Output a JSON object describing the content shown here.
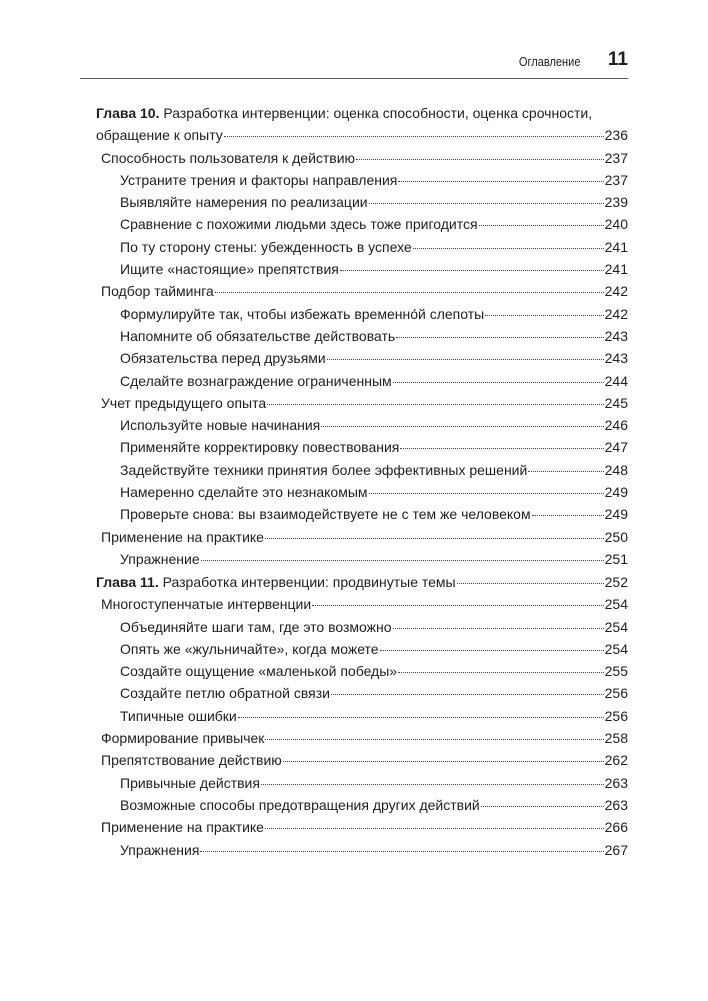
{
  "header": {
    "section": "Оглавление",
    "page_number": "11"
  },
  "chapters": [
    {
      "label": "Глава 10.",
      "title": " Разработка интервенции: оценка способности, оценка срочности,",
      "title_line2": "обращение к опыту",
      "page": "236",
      "entries": [
        {
          "level": 1,
          "text": "Способность пользователя к действию",
          "page": "237"
        },
        {
          "level": 2,
          "text": "Устраните трения и факторы направления",
          "page": "237"
        },
        {
          "level": 2,
          "text": "Выявляйте намерения по реализации",
          "page": "239"
        },
        {
          "level": 2,
          "text": "Сравнение с похожими людьми здесь тоже пригодится",
          "page": "240"
        },
        {
          "level": 2,
          "text": "По ту сторону стены: убежденность в успехе",
          "page": "241"
        },
        {
          "level": 2,
          "text": "Ищите «настоящие» препятствия",
          "page": "241"
        },
        {
          "level": 1,
          "text": "Подбор тайминга",
          "page": "242"
        },
        {
          "level": 2,
          "text": "Формулируйте так, чтобы избежать временно́й слепоты",
          "page": "242"
        },
        {
          "level": 2,
          "text": "Напомните об обязательстве действовать",
          "page": "243"
        },
        {
          "level": 2,
          "text": "Обязательства перед друзьями",
          "page": "243"
        },
        {
          "level": 2,
          "text": "Сделайте вознаграждение ограниченным",
          "page": "244"
        },
        {
          "level": 1,
          "text": "Учет предыдущего опыта",
          "page": "245"
        },
        {
          "level": 2,
          "text": "Используйте новые начинания",
          "page": "246"
        },
        {
          "level": 2,
          "text": "Применяйте корректировку повествования",
          "page": "247"
        },
        {
          "level": 2,
          "text": "Задействуйте техники принятия более эффективных решений",
          "page": "248"
        },
        {
          "level": 2,
          "text": "Намеренно сделайте это незнакомым",
          "page": "249"
        },
        {
          "level": 2,
          "text": "Проверьте снова: вы взаимодействуете не с тем же человеком",
          "page": "249"
        },
        {
          "level": 1,
          "text": "Применение на практике",
          "page": "250"
        },
        {
          "level": 2,
          "text": "Упражнение",
          "page": "251"
        }
      ]
    },
    {
      "label": "Глава 11.",
      "title": " Разработка интервенции: продвинутые темы",
      "page": "252",
      "entries": [
        {
          "level": 1,
          "text": "Многоступенчатые интервенции",
          "page": "254"
        },
        {
          "level": 2,
          "text": "Объединяйте шаги там, где это возможно",
          "page": "254"
        },
        {
          "level": 2,
          "text": "Опять же «жульничайте», когда можете",
          "page": "254"
        },
        {
          "level": 2,
          "text": "Создайте ощущение «маленькой победы»",
          "page": "255"
        },
        {
          "level": 2,
          "text": "Создайте петлю обратной связи",
          "page": "256"
        },
        {
          "level": 2,
          "text": "Типичные ошибки",
          "page": "256"
        },
        {
          "level": 1,
          "text": "Формирование привычек",
          "page": "258"
        },
        {
          "level": 1,
          "text": "Препятствование действию",
          "page": "262"
        },
        {
          "level": 2,
          "text": "Привычные действия",
          "page": "263"
        },
        {
          "level": 2,
          "text": "Возможные способы предотвращения других действий",
          "page": "263"
        },
        {
          "level": 1,
          "text": "Применение на практике",
          "page": "266"
        },
        {
          "level": 2,
          "text": "Упражнения",
          "page": "267"
        }
      ]
    }
  ]
}
